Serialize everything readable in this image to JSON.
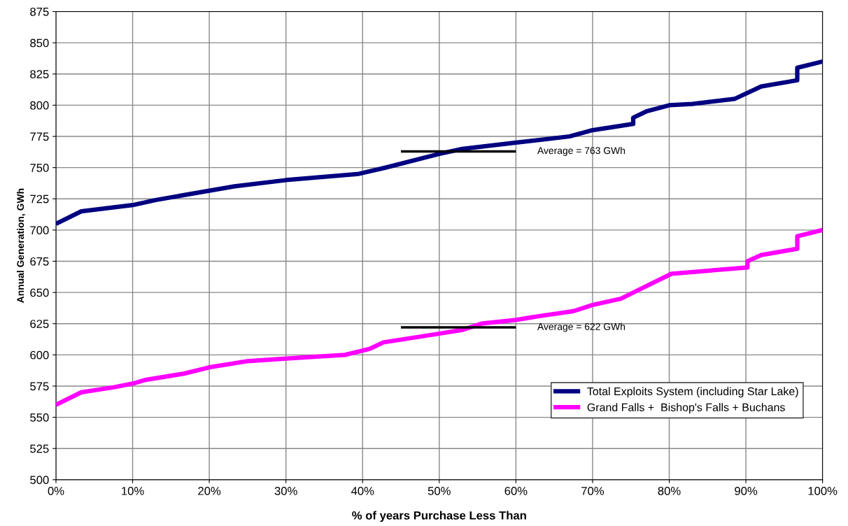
{
  "chart_data": {
    "type": "line",
    "xlabel": "% of years Purchase Less Than",
    "ylabel": "Annual Generation, GWh",
    "xlim": [
      0,
      100
    ],
    "xticks": [
      {
        "value": 0,
        "label": "0%"
      },
      {
        "value": 10,
        "label": "10%"
      },
      {
        "value": 20,
        "label": "20%"
      },
      {
        "value": 30,
        "label": "30%"
      },
      {
        "value": 40,
        "label": "40%"
      },
      {
        "value": 50,
        "label": "50%"
      },
      {
        "value": 60,
        "label": "60%"
      },
      {
        "value": 70,
        "label": "70%"
      },
      {
        "value": 80,
        "label": "80%"
      },
      {
        "value": 90,
        "label": "90%"
      },
      {
        "value": 100,
        "label": "100%"
      }
    ],
    "ylim": [
      500,
      875
    ],
    "yticks": [
      500,
      525,
      550,
      575,
      600,
      625,
      650,
      675,
      700,
      725,
      750,
      775,
      800,
      825,
      850,
      875
    ],
    "grid": true,
    "legend": "bottom right",
    "marker": "none",
    "line_style": "solid",
    "series": [
      {
        "name": "Total Exploits System (including Star Lake)",
        "color": "#000080",
        "x": [
          0,
          3.3,
          10,
          13,
          16.7,
          23.3,
          30,
          39.5,
          43,
          50,
          53,
          60,
          67,
          70,
          75.3,
          75.3,
          77,
          80,
          83,
          88.5,
          92,
          96.7,
          96.7,
          100
        ],
        "values": [
          705,
          715,
          720,
          724,
          728,
          735,
          740,
          745,
          750,
          761,
          765,
          770,
          775,
          780,
          785,
          790,
          795,
          800,
          801,
          805,
          815,
          820,
          830,
          835
        ]
      },
      {
        "name": "Grand Falls +  Bishop's Falls + Buchans",
        "color": "#ff00ff",
        "x": [
          0,
          3.3,
          7.5,
          10,
          11.7,
          16.7,
          20,
          25,
          30,
          37.7,
          41,
          42.7,
          50,
          53,
          55.5,
          60,
          63,
          67.5,
          70,
          73.7,
          76,
          80.3,
          90.2,
          90.2,
          92,
          96.7,
          96.7,
          100
        ],
        "values": [
          560,
          570,
          574,
          577,
          580,
          585,
          590,
          595,
          597,
          600,
          605,
          610,
          617,
          620,
          625,
          628,
          631,
          635,
          640,
          645,
          652,
          665,
          670,
          675,
          680,
          685,
          695,
          700
        ]
      },
      {
        "color": "#000000",
        "x": [
          45,
          60
        ],
        "values": [
          763,
          763
        ]
      },
      {
        "color": "#000000",
        "x": [
          45,
          60
        ],
        "values": [
          622,
          622
        ]
      }
    ],
    "annotations": [
      {
        "text": "Average = 763 GWh",
        "x": 60,
        "y": 763
      },
      {
        "text": "Average = 622 GWh",
        "x": 60,
        "y": 622
      }
    ]
  }
}
